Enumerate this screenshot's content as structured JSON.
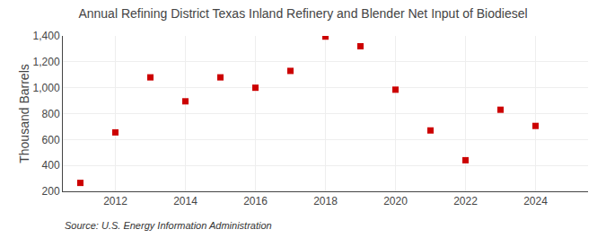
{
  "chart_data": {
    "type": "scatter",
    "title": "Annual Refining District Texas Inland Refinery and Blender Net Input of Biodiesel",
    "ylabel": "Thousand Barrels",
    "annotations": [
      "Source: U.S. Energy Information Administration"
    ],
    "x": [
      2011,
      2012,
      2013,
      2014,
      2015,
      2016,
      2017,
      2018,
      2019,
      2020,
      2021,
      2022,
      2023,
      2024
    ],
    "values": [
      265,
      655,
      1080,
      895,
      1080,
      1000,
      1130,
      1395,
      1320,
      985,
      670,
      440,
      830,
      705
    ],
    "color": "#cc0000",
    "marker": "square",
    "xlim": [
      2010.5,
      2025.5
    ],
    "xticks": [
      2012,
      2014,
      2016,
      2018,
      2020,
      2022,
      2024
    ],
    "ylim": [
      200,
      1400
    ],
    "yticks": [
      200,
      400,
      600,
      800,
      {
        "value": 1000,
        "label": "1,000"
      },
      {
        "value": 1200,
        "label": "1,200"
      },
      {
        "value": 1400,
        "label": "1,400"
      }
    ],
    "grid": true
  }
}
